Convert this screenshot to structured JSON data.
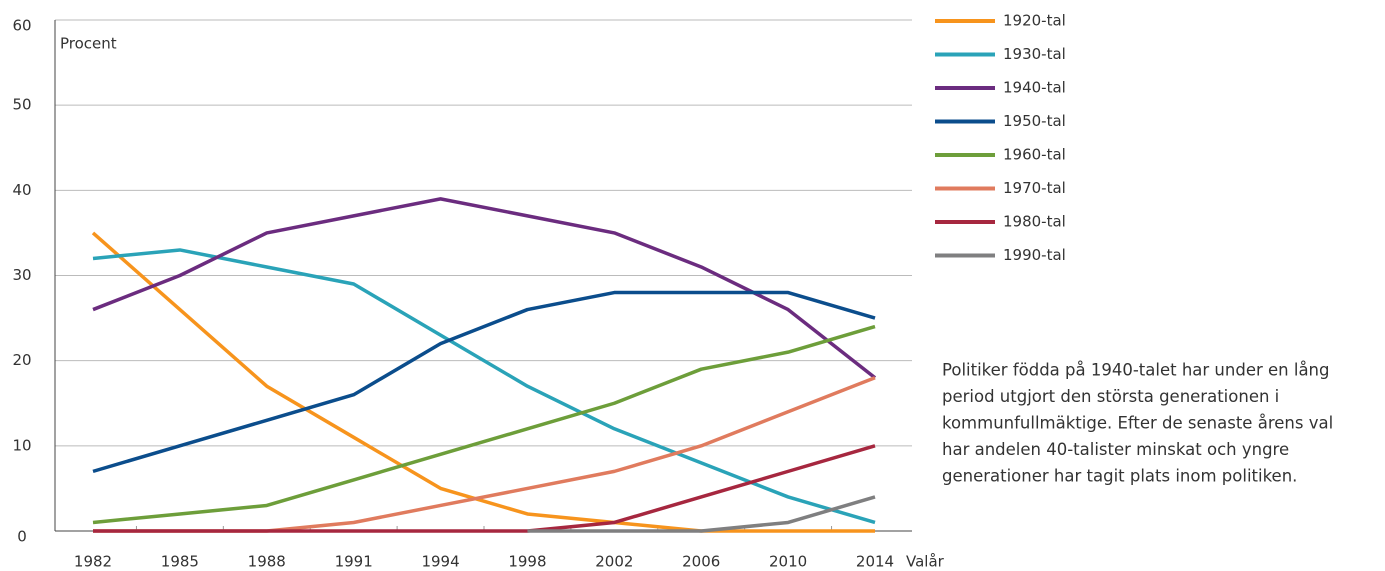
{
  "chart_data": {
    "type": "line",
    "y_label": "Procent",
    "x_label": "Valår",
    "categories": [
      "1982",
      "1985",
      "1988",
      "1991",
      "1994",
      "1998",
      "2002",
      "2006",
      "2010",
      "2014"
    ],
    "series": [
      {
        "name": "1920-tal",
        "color": "#f7941d",
        "values": [
          35,
          26,
          17,
          11,
          5,
          2,
          1,
          0,
          0,
          0
        ]
      },
      {
        "name": "1930-tal",
        "color": "#2aa3b8",
        "values": [
          32,
          33,
          31,
          29,
          23,
          17,
          12,
          8,
          4,
          1
        ]
      },
      {
        "name": "1940-tal",
        "color": "#6b2c7f",
        "values": [
          26,
          30,
          35,
          37,
          39,
          37,
          35,
          31,
          26,
          18
        ]
      },
      {
        "name": "1950-tal",
        "color": "#0b4d8c",
        "values": [
          7,
          10,
          13,
          16,
          22,
          26,
          28,
          28,
          28,
          25
        ]
      },
      {
        "name": "1960-tal",
        "color": "#6d9e3a",
        "values": [
          1,
          2,
          3,
          6,
          9,
          12,
          15,
          19,
          21,
          24
        ]
      },
      {
        "name": "1970-tal",
        "color": "#e07b5e",
        "values": [
          0,
          0,
          0,
          1,
          3,
          5,
          7,
          10,
          14,
          18
        ]
      },
      {
        "name": "1980-tal",
        "color": "#a6273f",
        "values": [
          0,
          0,
          0,
          0,
          0,
          0,
          1,
          4,
          7,
          10
        ]
      },
      {
        "name": "1990-tal",
        "color": "#7f7f80",
        "values": [
          null,
          null,
          null,
          null,
          null,
          0,
          0,
          0,
          1,
          4
        ]
      }
    ],
    "ylim": [
      0,
      60
    ],
    "yticks": [
      0,
      10,
      20,
      30,
      40,
      50,
      60
    ],
    "grid": true,
    "legend": "right",
    "annotation": [
      "Politiker födda på 1940-talet har under en lång",
      "period utgjort den största generationen i",
      "kommunfullmäktige. Efter de senaste årens val",
      "har andelen 40-talister minskat och yngre",
      "generationer har tagit plats inom politiken."
    ]
  }
}
